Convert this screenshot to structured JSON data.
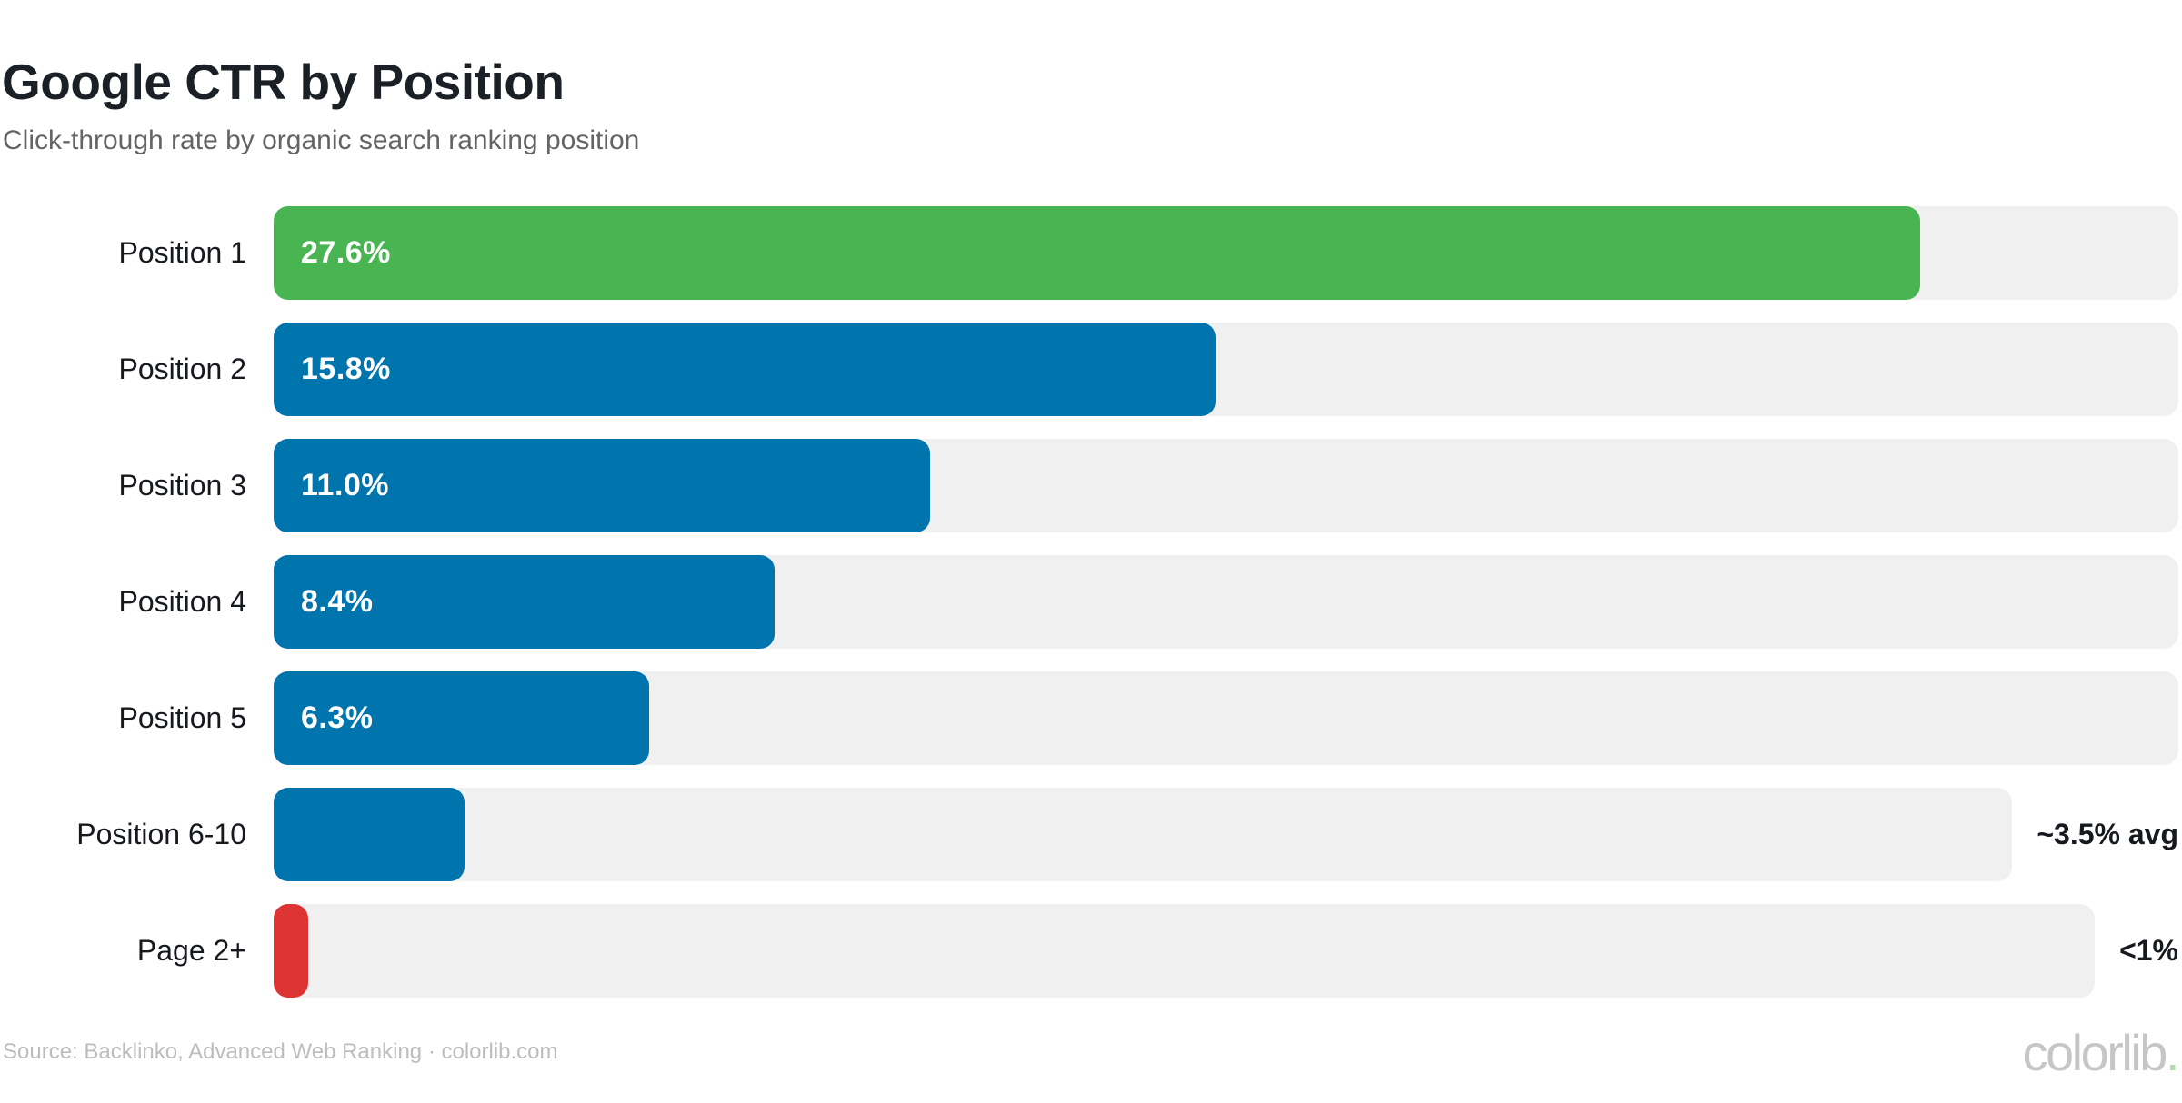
{
  "header": {
    "title": "Google CTR by Position",
    "subtitle": "Click-through rate by organic search ranking position"
  },
  "footer": {
    "source": "Source: Backlinko, Advanced Web Ranking · colorlib.com",
    "brand": "colorlib",
    "brand_dot": "."
  },
  "colors": {
    "top_bar_green": "#48b452",
    "bar_blue": "#0074ac",
    "alert_red": "#dc3433",
    "track_gray": "#f0f0f1",
    "text_dark": "#16191e",
    "text_muted": "#646464",
    "footer_gray": "#bdbdbd",
    "brand_dot_green": "#b2dcab"
  },
  "chart_data": {
    "type": "bar",
    "orientation": "horizontal",
    "title": "Google CTR by Position",
    "subtitle": "Click-through rate by organic search ranking position",
    "unit": "%",
    "grid": false,
    "legend": false,
    "x_range_pct": [
      0,
      32
    ],
    "categories": [
      "Position 1",
      "Position 2",
      "Position 3",
      "Position 4",
      "Position 5",
      "Position 6-10",
      "Page 2+"
    ],
    "value_labels": [
      "27.6%",
      "15.8%",
      "11.0%",
      "8.4%",
      "6.3%",
      "~3.5% avg",
      "<1%"
    ],
    "values_drawn_pct": [
      27.6,
      15.8,
      11.0,
      8.4,
      6.3,
      3.2,
      0.58
    ],
    "rows": [
      {
        "label": "Position 1",
        "value_label": "27.6%",
        "right_label": "",
        "bar_pct": 27.6,
        "color": "#48b452"
      },
      {
        "label": "Position 2",
        "value_label": "15.8%",
        "right_label": "",
        "bar_pct": 15.8,
        "color": "#0074ac"
      },
      {
        "label": "Position 3",
        "value_label": "11.0%",
        "right_label": "",
        "bar_pct": 11.0,
        "color": "#0074ac"
      },
      {
        "label": "Position 4",
        "value_label": "8.4%",
        "right_label": "",
        "bar_pct": 8.4,
        "color": "#0074ac"
      },
      {
        "label": "Position 5",
        "value_label": "6.3%",
        "right_label": "",
        "bar_pct": 6.3,
        "color": "#0074ac"
      },
      {
        "label": "Position 6-10",
        "value_label": "",
        "right_label": "~3.5% avg",
        "bar_pct": 3.2,
        "color": "#0074ac"
      },
      {
        "label": "Page 2+",
        "value_label": "",
        "right_label": "<1%",
        "bar_pct": 0.58,
        "color": "#dc3433"
      }
    ]
  }
}
